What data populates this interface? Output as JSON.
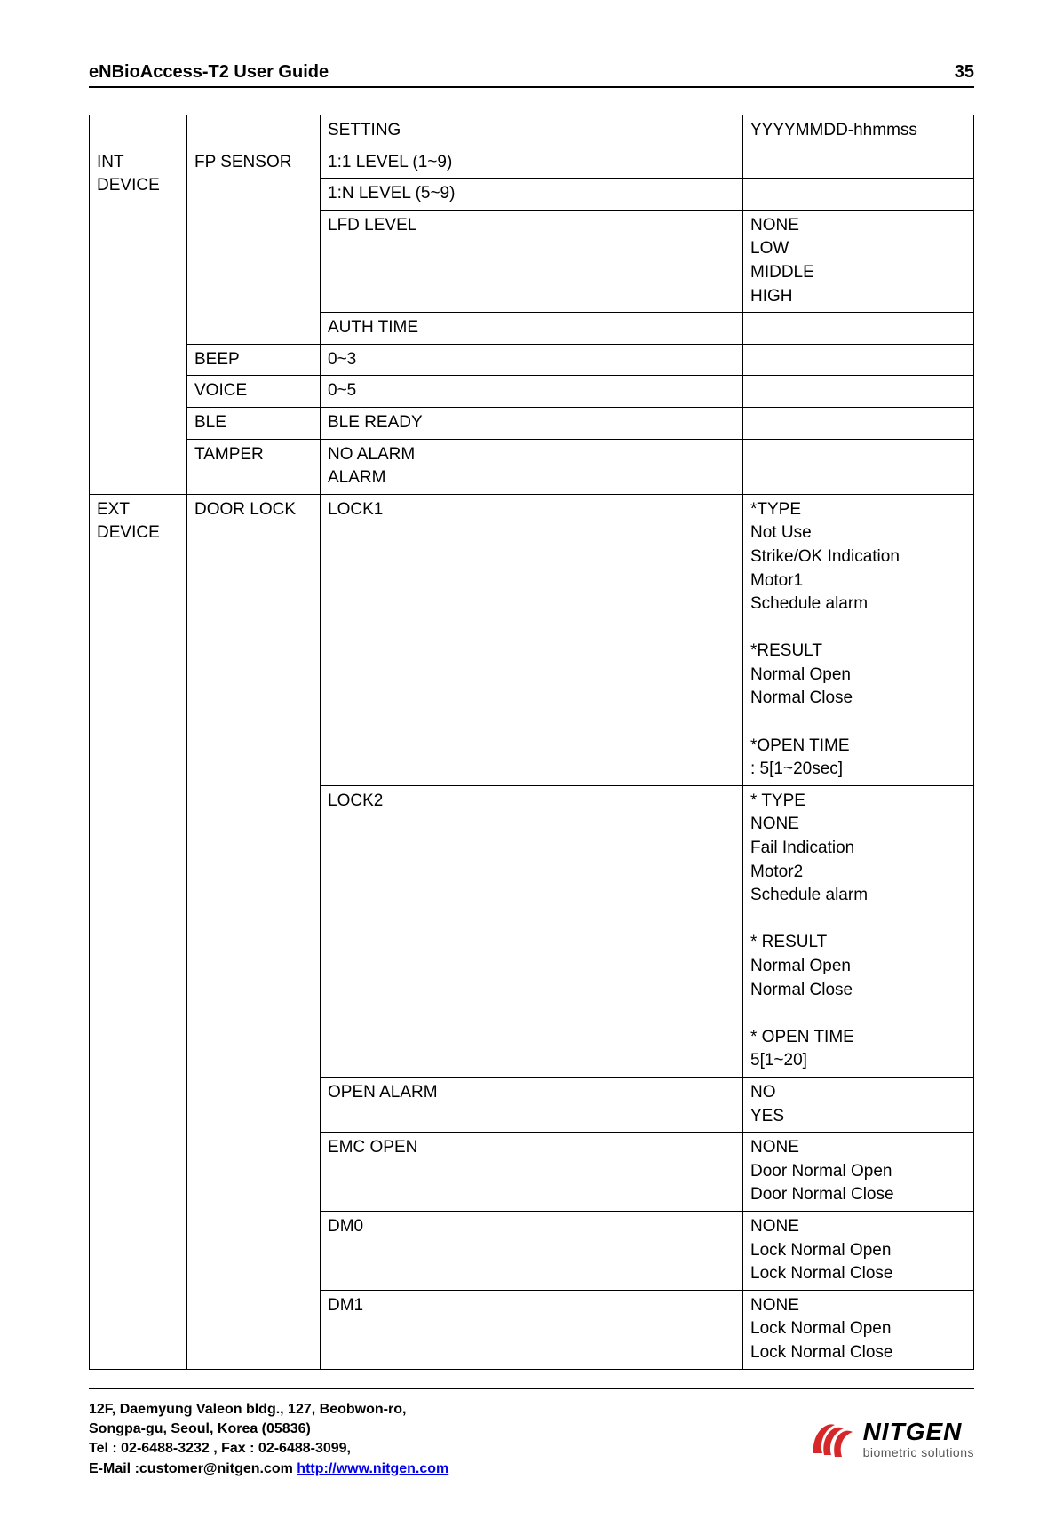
{
  "header": {
    "title": "eNBioAccess-T2 User Guide",
    "page_number": "35"
  },
  "table": {
    "rows": [
      {
        "c1": "",
        "c2": "",
        "c3": "SETTING",
        "c4": "YYYYMMDD-hhmmss",
        "rs1": 1,
        "rs2": 1,
        "rs3": 1,
        "rs4": 1
      },
      {
        "c1": "INT\nDEVICE",
        "c2": "FP SENSOR",
        "c3": "1:1 LEVEL (1~9)",
        "c4": "",
        "rs1": 8,
        "rs2": 4,
        "rs3": 1,
        "rs4": 1
      },
      {
        "c3": "1:N LEVEL (5~9)",
        "c4": "",
        "rs3": 1,
        "rs4": 1
      },
      {
        "c3": "LFD LEVEL",
        "c4": "NONE\nLOW\nMIDDLE\nHIGH",
        "rs3": 1,
        "rs4": 1
      },
      {
        "c3": "AUTH TIME",
        "c4": "",
        "rs3": 1,
        "rs4": 1
      },
      {
        "c2": "BEEP",
        "c3": "0~3",
        "c4": "",
        "rs2": 1,
        "rs3": 1,
        "rs4": 1
      },
      {
        "c2": "VOICE",
        "c3": "0~5",
        "c4": "",
        "rs2": 1,
        "rs3": 1,
        "rs4": 1
      },
      {
        "c2": "BLE",
        "c3": "BLE READY",
        "c4": "",
        "rs2": 1,
        "rs3": 1,
        "rs4": 1
      },
      {
        "c2": "TAMPER",
        "c3": "NO ALARM\nALARM",
        "c4": "",
        "rs2": 1,
        "rs3": 1,
        "rs4": 1
      },
      {
        "c1": "EXT\nDEVICE",
        "c2": "DOOR LOCK",
        "c3": "LOCK1",
        "c4": "*TYPE\nNot Use\nStrike/OK Indication\nMotor1\nSchedule alarm\n\n*RESULT\nNormal Open\nNormal Close\n\n*OPEN TIME\n: 5[1~20sec]",
        "rs1": 6,
        "rs2": 6,
        "rs3": 1,
        "rs4": 1
      },
      {
        "c3": "LOCK2",
        "c4": "* TYPE\nNONE\nFail Indication\nMotor2\nSchedule alarm\n\n* RESULT\nNormal Open\nNormal Close\n\n* OPEN TIME\n5[1~20]",
        "rs3": 1,
        "rs4": 1
      },
      {
        "c3": "OPEN ALARM",
        "c4": "NO\nYES",
        "rs3": 1,
        "rs4": 1
      },
      {
        "c3": "EMC OPEN",
        "c4": "NONE\nDoor Normal Open\nDoor Normal Close",
        "rs3": 1,
        "rs4": 1
      },
      {
        "c3": "DM0",
        "c4": "NONE\nLock Normal Open\nLock Normal Close",
        "rs3": 1,
        "rs4": 1
      },
      {
        "c3": "DM1",
        "c4": "NONE\nLock Normal Open\nLock Normal Close",
        "rs3": 1,
        "rs4": 1
      }
    ]
  },
  "footer": {
    "line1": "12F, Daemyung Valeon bldg., 127, Beobwon-ro,",
    "line2": "Songpa-gu, Seoul, Korea (05836)",
    "line3": "Tel : 02-6488-3232 , Fax : 02-6488-3099,",
    "line4_prefix": "E-Mail :customer@nitgen.com ",
    "line4_link": "http://www.nitgen.com",
    "logo_name": "NITGEN",
    "logo_tag": "biometric solutions"
  }
}
